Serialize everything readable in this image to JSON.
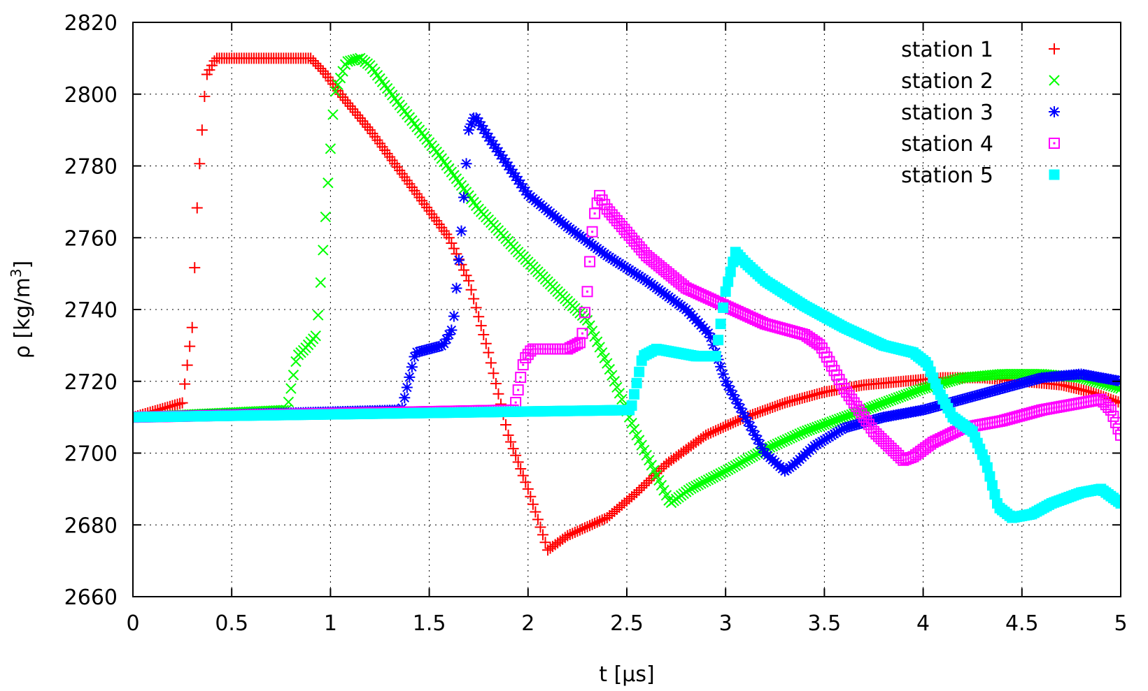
{
  "chart_data": {
    "type": "scatter",
    "title": "",
    "xlabel": "t [µs]",
    "ylabel_main": "ρ [kg/m",
    "ylabel_sup": "3",
    "ylabel_close": "]",
    "xlim": [
      0,
      5
    ],
    "ylim": [
      2660,
      2820
    ],
    "xticks": [
      0,
      0.5,
      1,
      1.5,
      2,
      2.5,
      3,
      3.5,
      4,
      4.5,
      5
    ],
    "xtick_labels": [
      "0",
      "0.5",
      "1",
      "1.5",
      "2",
      "2.5",
      "3",
      "3.5",
      "4",
      "4.5",
      "5"
    ],
    "yticks": [
      2660,
      2680,
      2700,
      2720,
      2740,
      2760,
      2780,
      2800,
      2820
    ],
    "ytick_labels": [
      "2660",
      "2680",
      "2700",
      "2720",
      "2740",
      "2760",
      "2780",
      "2800",
      "2820"
    ],
    "grid": true,
    "legend_position": "top-right",
    "series": [
      {
        "name": "station 1",
        "color": "#ff0000",
        "marker": "plus",
        "x": [
          0,
          0.25,
          0.3,
          0.33,
          0.37,
          0.42,
          0.6,
          0.9,
          0.97,
          1.05,
          1.2,
          1.4,
          1.6,
          1.7,
          1.8,
          1.9,
          2.0,
          2.1,
          2.2,
          2.4,
          2.55,
          2.7,
          2.9,
          3.1,
          3.3,
          3.5,
          3.7,
          3.9,
          4.1,
          4.3,
          4.5,
          4.7,
          4.85,
          5.0
        ],
        "y": [
          2710,
          2714,
          2735,
          2775,
          2805,
          2810,
          2810,
          2810,
          2806,
          2800,
          2790,
          2775,
          2760,
          2748,
          2728,
          2705,
          2690,
          2673,
          2677,
          2682,
          2689,
          2697,
          2705,
          2710,
          2714,
          2717,
          2719,
          2720,
          2721,
          2721,
          2720,
          2719,
          2717,
          2714
        ]
      },
      {
        "name": "station 2",
        "color": "#00ff00",
        "marker": "cross",
        "x": [
          0,
          0.78,
          0.83,
          0.87,
          0.93,
          0.97,
          1.02,
          1.08,
          1.15,
          1.2,
          1.35,
          1.55,
          1.75,
          1.95,
          2.15,
          2.3,
          2.4,
          2.55,
          2.72,
          2.82,
          3.0,
          3.2,
          3.4,
          3.6,
          3.8,
          4.0,
          4.2,
          4.4,
          4.6,
          4.8,
          5.0
        ],
        "y": [
          2710,
          2712,
          2727,
          2729,
          2733,
          2762,
          2800,
          2809,
          2810,
          2808,
          2797,
          2783,
          2768,
          2756,
          2745,
          2737,
          2725,
          2705,
          2686,
          2690,
          2695,
          2701,
          2706,
          2710,
          2714,
          2718,
          2721,
          2722,
          2722,
          2721,
          2718
        ]
      },
      {
        "name": "station 3",
        "color": "#0000ff",
        "marker": "star",
        "x": [
          0,
          1.36,
          1.43,
          1.5,
          1.57,
          1.62,
          1.66,
          1.7,
          1.73,
          1.8,
          2.0,
          2.2,
          2.4,
          2.6,
          2.8,
          2.92,
          3.0,
          3.1,
          3.2,
          3.3,
          3.35,
          3.45,
          3.6,
          3.8,
          4.0,
          4.2,
          4.4,
          4.6,
          4.8,
          5.0
        ],
        "y": [
          2710,
          2712,
          2728,
          2729,
          2730,
          2735,
          2760,
          2790,
          2794,
          2788,
          2772,
          2763,
          2755,
          2748,
          2740,
          2733,
          2720,
          2710,
          2700,
          2695,
          2697,
          2702,
          2707,
          2710,
          2712,
          2715,
          2718,
          2721,
          2722,
          2720
        ]
      },
      {
        "name": "station 4",
        "color": "#ff00ff",
        "marker": "square-dot",
        "x": [
          0,
          1.93,
          1.98,
          2.02,
          2.1,
          2.2,
          2.27,
          2.3,
          2.33,
          2.36,
          2.4,
          2.6,
          2.8,
          3.0,
          3.2,
          3.4,
          3.48,
          3.6,
          3.75,
          3.9,
          3.95,
          4.05,
          4.2,
          4.4,
          4.6,
          4.8,
          4.9,
          4.95,
          5.0
        ],
        "y": [
          2710,
          2712,
          2726,
          2729,
          2729,
          2729,
          2731,
          2745,
          2765,
          2772,
          2768,
          2755,
          2746,
          2741,
          2736,
          2733,
          2730,
          2718,
          2706,
          2698,
          2699,
          2703,
          2707,
          2709,
          2712,
          2714,
          2715,
          2712,
          2705
        ]
      },
      {
        "name": "station 5",
        "color": "#00ffff",
        "marker": "filled-square",
        "x": [
          0,
          2.52,
          2.58,
          2.65,
          2.75,
          2.85,
          2.95,
          3.0,
          3.05,
          3.1,
          3.2,
          3.4,
          3.6,
          3.8,
          3.95,
          4.02,
          4.08,
          4.15,
          4.25,
          4.32,
          4.38,
          4.45,
          4.55,
          4.65,
          4.8,
          4.9,
          4.95,
          5.0
        ],
        "y": [
          2710,
          2712,
          2727,
          2729,
          2728,
          2727,
          2727,
          2745,
          2756,
          2753,
          2748,
          2741,
          2735,
          2730,
          2728,
          2725,
          2717,
          2710,
          2706,
          2697,
          2685,
          2682,
          2683,
          2686,
          2689,
          2690,
          2688,
          2686
        ]
      }
    ]
  }
}
